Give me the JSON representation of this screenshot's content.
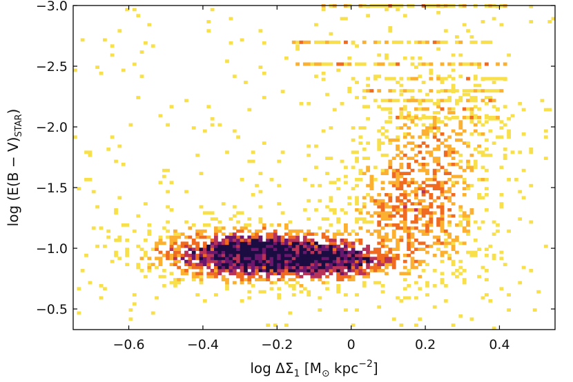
{
  "chart_data": {
    "type": "heatmap",
    "title": "",
    "xlabel_parts": {
      "pre": "log ΔΣ",
      "sub": "1",
      "mid": " [M",
      "sym": "⊙",
      "post": " kpc",
      "sup": "−2",
      "end": "]"
    },
    "ylabel_parts": {
      "pre": "log (E(B − V)",
      "sub": "STAR",
      "end": ")"
    },
    "xlim": [
      -0.75,
      0.55
    ],
    "ylim": [
      -0.33,
      -3.0
    ],
    "y_inverted": true,
    "x_ticks": [
      -0.6,
      -0.4,
      -0.2,
      0,
      0.2,
      0.4
    ],
    "x_tick_labels": [
      "−0.6",
      "−0.4",
      "−0.2",
      "0",
      "0.2",
      "0.4"
    ],
    "y_ticks": [
      -0.5,
      -1.0,
      -1.5,
      -2.0,
      -2.5,
      -3.0
    ],
    "y_tick_labels": [
      "−0.5",
      "−1.0",
      "−1.5",
      "−2.0",
      "−2.5",
      "−3.0"
    ],
    "grid": false,
    "colormap": [
      "#f7e04b",
      "#fbb032",
      "#f06b22",
      "#b93358",
      "#6b176e",
      "#1b0c41"
    ],
    "density_components": [
      {
        "x_center": -0.28,
        "y_center": -0.95,
        "x_sigma": 0.15,
        "y_sigma": 0.13,
        "weight": 1.0
      },
      {
        "x_center": -0.05,
        "y_center": -0.9,
        "x_sigma": 0.1,
        "y_sigma": 0.1,
        "weight": 0.7
      },
      {
        "x_center": 0.18,
        "y_center": -1.35,
        "x_sigma": 0.12,
        "y_sigma": 0.38,
        "weight": 0.38
      },
      {
        "x_center": 0.25,
        "y_center": -2.0,
        "x_sigma": 0.1,
        "y_sigma": 0.25,
        "weight": 0.16
      }
    ],
    "discrete_rows": [
      {
        "y": -3.0,
        "x_range": [
          -0.08,
          0.44
        ]
      },
      {
        "y": -2.7,
        "x_range": [
          -0.17,
          0.38
        ]
      },
      {
        "y": -2.52,
        "x_range": [
          -0.15,
          0.42
        ]
      },
      {
        "y": -2.4,
        "x_range": [
          0.0,
          0.42
        ]
      },
      {
        "y": -2.3,
        "x_range": [
          0.03,
          0.41
        ]
      },
      {
        "y": -2.22,
        "x_range": [
          0.06,
          0.4
        ]
      },
      {
        "y": -2.15,
        "x_range": [
          0.08,
          0.4
        ]
      },
      {
        "y": -2.08,
        "x_range": [
          0.1,
          0.4
        ]
      }
    ]
  }
}
